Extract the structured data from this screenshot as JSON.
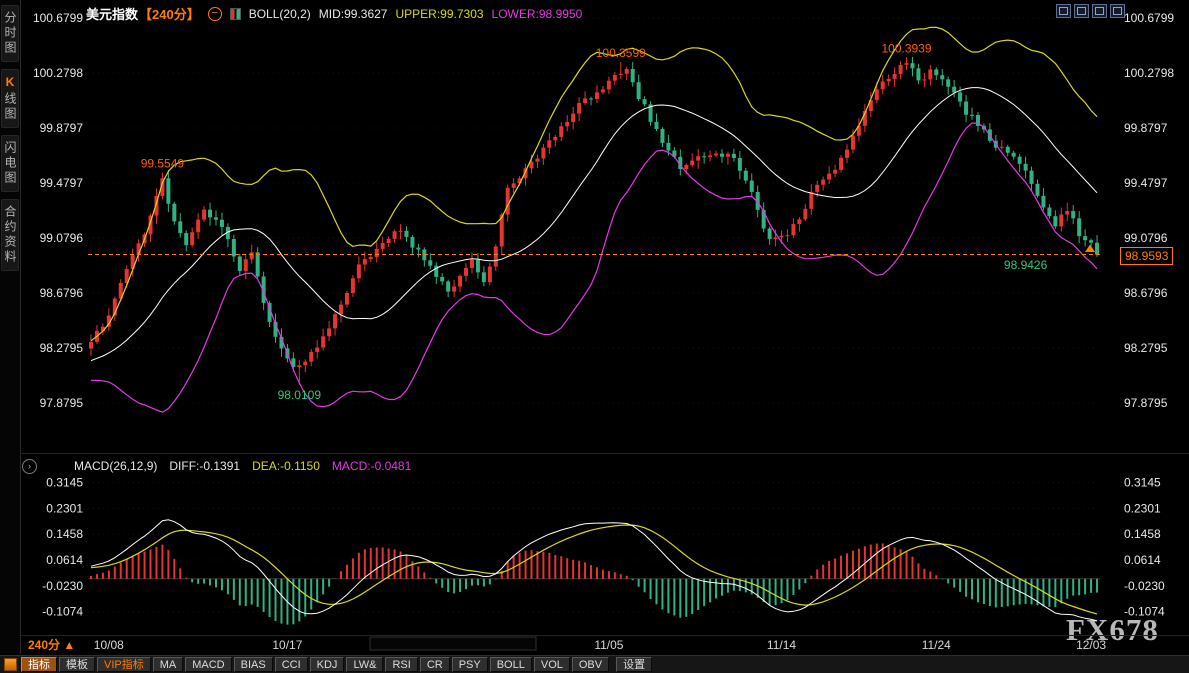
{
  "sidebar": {
    "items": [
      {
        "accent": "",
        "label": "分时图"
      },
      {
        "accent": "K",
        "label": "线图"
      },
      {
        "accent": "",
        "label": "闪电图"
      },
      {
        "accent": "",
        "label": "合约资料"
      }
    ]
  },
  "header": {
    "title": "美元指数",
    "period": "【240分】",
    "zoom_out_glyph": "−",
    "boll_label": "BOLL(20,2)",
    "mid_label": "MID:99.3627",
    "upper_label": "UPPER:99.7303",
    "lower_label": "LOWER:98.9950"
  },
  "price_panel": {
    "last_price_label": "98.9593"
  },
  "macd_panel": {
    "cycle_glyph": "›",
    "name_label": "MACD(26,12,9)",
    "diff_label": "DIFF:-0.1391",
    "dea_label": "DEA:-0.1150",
    "macd_label": "MACD:-0.0481"
  },
  "time_axis": {
    "period_label": "240分",
    "arrow_glyph": "▲",
    "ticks": [
      {
        "bar": 3,
        "label": "10/08"
      },
      {
        "bar": 33,
        "label": "10/17"
      },
      {
        "bar": 87,
        "label": "11/05"
      },
      {
        "bar": 116,
        "label": "11/14"
      },
      {
        "bar": 142,
        "label": "11/24"
      },
      {
        "bar": 168,
        "label": "12/03"
      }
    ]
  },
  "toolbar": {
    "items": [
      "指标",
      "模板",
      "VIP指标",
      "MA",
      "MACD",
      "BIAS",
      "CCI",
      "KDJ",
      "LW&",
      "RSI",
      "CR",
      "PSY",
      "BOLL",
      "VOL",
      "OBV",
      "设置"
    ]
  },
  "watermark": "FX678",
  "chart_data": {
    "type": "candlestick",
    "symbol": "美元指数",
    "period": "240分",
    "bars": 170,
    "last_price": 98.9593,
    "price_axis": {
      "top_value": 100.6799,
      "labels": [
        "100.6799",
        "100.2798",
        "99.8797",
        "99.4797",
        "99.0796",
        "98.6796",
        "98.2795",
        "97.8795"
      ]
    },
    "macd_axis": {
      "labels": [
        "0.3145",
        "0.2301",
        "0.1458",
        "0.0614",
        "-0.0230",
        "-0.1074"
      ]
    },
    "close_anchors": [
      [
        0,
        98.32
      ],
      [
        3,
        98.5
      ],
      [
        6,
        98.88
      ],
      [
        9,
        99.12
      ],
      [
        12,
        99.5
      ],
      [
        14,
        99.18
      ],
      [
        16,
        99.05
      ],
      [
        19,
        99.28
      ],
      [
        22,
        99.15
      ],
      [
        25,
        98.85
      ],
      [
        27,
        99.0
      ],
      [
        30,
        98.45
      ],
      [
        34,
        98.12
      ],
      [
        36,
        98.2
      ],
      [
        39,
        98.35
      ],
      [
        42,
        98.6
      ],
      [
        45,
        98.88
      ],
      [
        48,
        99.0
      ],
      [
        51,
        99.15
      ],
      [
        54,
        99.02
      ],
      [
        57,
        98.88
      ],
      [
        60,
        98.7
      ],
      [
        62,
        98.78
      ],
      [
        64,
        98.92
      ],
      [
        66,
        98.74
      ],
      [
        68,
        99.0
      ],
      [
        70,
        99.45
      ],
      [
        73,
        99.58
      ],
      [
        76,
        99.72
      ],
      [
        79,
        99.9
      ],
      [
        82,
        100.05
      ],
      [
        85,
        100.12
      ],
      [
        88,
        100.28
      ],
      [
        90,
        100.32
      ],
      [
        92,
        100.1
      ],
      [
        94,
        99.95
      ],
      [
        97,
        99.72
      ],
      [
        99,
        99.6
      ],
      [
        102,
        99.66
      ],
      [
        105,
        99.72
      ],
      [
        108,
        99.65
      ],
      [
        110,
        99.5
      ],
      [
        112,
        99.28
      ],
      [
        114,
        99.05
      ],
      [
        117,
        99.12
      ],
      [
        120,
        99.3
      ],
      [
        122,
        99.48
      ],
      [
        125,
        99.6
      ],
      [
        127,
        99.74
      ],
      [
        130,
        100.0
      ],
      [
        132,
        100.18
      ],
      [
        135,
        100.3
      ],
      [
        137,
        100.36
      ],
      [
        139,
        100.22
      ],
      [
        141,
        100.3
      ],
      [
        143,
        100.24
      ],
      [
        145,
        100.15
      ],
      [
        147,
        100.0
      ],
      [
        150,
        99.85
      ],
      [
        152,
        99.76
      ],
      [
        155,
        99.66
      ],
      [
        157,
        99.55
      ],
      [
        160,
        99.32
      ],
      [
        162,
        99.18
      ],
      [
        164,
        99.28
      ],
      [
        166,
        99.12
      ],
      [
        168,
        99.02
      ],
      [
        169,
        98.9593
      ]
    ],
    "key_points": [
      {
        "bar": 12,
        "high": 99.5549
      },
      {
        "bar": 35,
        "low": 98.0109
      },
      {
        "bar": 89,
        "high": 100.3599
      },
      {
        "bar": 137,
        "high": 100.3939
      },
      {
        "bar": 169,
        "close": 98.9593,
        "low": 98.9426
      }
    ],
    "annotations": [
      {
        "bar": 12,
        "attach": "high",
        "text": "99.5549",
        "color": "#ff5f00"
      },
      {
        "bar": 35,
        "attach": "low",
        "text": "98.0109",
        "color": "#2fc77e"
      },
      {
        "bar": 89,
        "attach": "high",
        "text": "100.3599",
        "color": "#ff5f00"
      },
      {
        "bar": 137,
        "attach": "high",
        "text": "100.3939",
        "color": "#ff5f00"
      },
      {
        "bar": 157,
        "attach": "price",
        "price": 98.885,
        "text": "98.9426",
        "color": "#2fc77e"
      }
    ],
    "indicators": {
      "boll": {
        "period": 20,
        "mult": 2,
        "mid": 99.3627,
        "upper": 99.7303,
        "lower": 98.995
      },
      "macd": {
        "fast": 12,
        "slow": 26,
        "signal": 9,
        "diff": -0.1391,
        "dea": -0.115,
        "macd": -0.0481
      }
    },
    "colors": {
      "up": "#e63434",
      "down": "#2fb384",
      "boll_mid": "#ffffff",
      "boll_upper": "#d8d820",
      "boll_lower": "#e23ae2",
      "last_price_line": "#ff7d00",
      "macd_diff": "#ffffff",
      "macd_dea": "#d8d820",
      "axis_text": "#e8e8e8"
    }
  }
}
